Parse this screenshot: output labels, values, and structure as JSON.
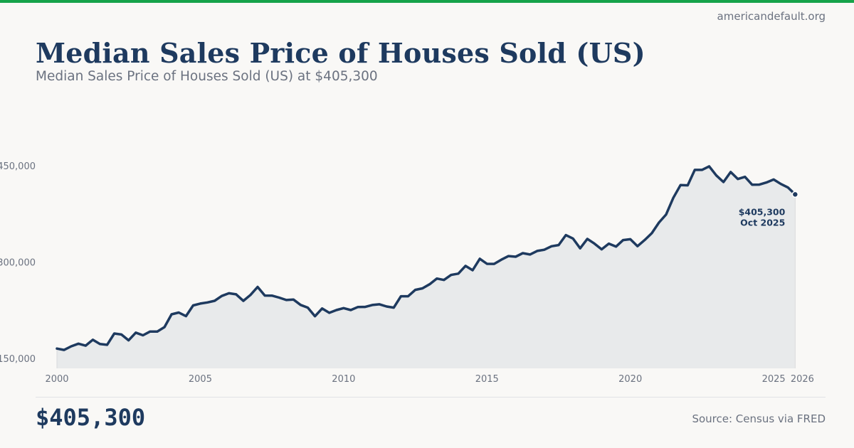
{
  "header": {
    "site": "americandefault.org",
    "title": "Median Sales Price of Houses Sold (US)",
    "subtitle": "Median Sales Price of Houses Sold (US) at $405,300"
  },
  "footer": {
    "value": "$405,300",
    "source": "Source: Census via FRED"
  },
  "colors": {
    "accent_bar": "#16a34a",
    "line": "#1e3a5f",
    "area": "#e8eaeb",
    "muted_text": "#6b7280"
  },
  "chart_data": {
    "type": "area",
    "title": "Median Sales Price of Houses Sold (US)",
    "xlabel": "",
    "ylabel": "",
    "frequency": "quarterly",
    "x_start": "2000-01",
    "xlim": [
      2000,
      2026
    ],
    "ylim": [
      134500,
      480000
    ],
    "grid": false,
    "legend": "none",
    "y_ticks": [
      {
        "value": 150000,
        "label": "$150,000"
      },
      {
        "value": 300000,
        "label": "$300,000"
      },
      {
        "value": 450000,
        "label": "$450,000"
      }
    ],
    "x_ticks": [
      {
        "value": 2000,
        "label": "2000"
      },
      {
        "value": 2005,
        "label": "2005"
      },
      {
        "value": 2010,
        "label": "2010"
      },
      {
        "value": 2015,
        "label": "2015"
      },
      {
        "value": 2020,
        "label": "2020"
      },
      {
        "value": 2025,
        "label": "2025"
      },
      {
        "value": 2026,
        "label": "2026"
      }
    ],
    "values": [
      165300,
      163200,
      168800,
      172900,
      169800,
      179000,
      172500,
      171100,
      188700,
      187200,
      178100,
      190100,
      186000,
      191800,
      191900,
      198700,
      218600,
      221400,
      215800,
      232500,
      235300,
      237100,
      239700,
      247200,
      251400,
      249700,
      239600,
      248800,
      261300,
      247900,
      247800,
      244700,
      240900,
      241700,
      233300,
      229000,
      215700,
      227700,
      221000,
      225300,
      228300,
      225300,
      230000,
      230200,
      233100,
      234200,
      230800,
      229000,
      246700,
      246800,
      256700,
      259000,
      265500,
      274300,
      272100,
      280000,
      282000,
      294000,
      287300,
      305100,
      297200,
      297100,
      303600,
      309300,
      308300,
      313800,
      311700,
      317300,
      319100,
      324600,
      326500,
      342000,
      336600,
      321400,
      336100,
      328700,
      319800,
      328700,
      324000,
      334200,
      335500,
      324700,
      334200,
      344900,
      361600,
      374100,
      400000,
      419800,
      419500,
      443500,
      443500,
      449000,
      434800,
      424500,
      440200,
      429300,
      432600,
      420300,
      420500,
      423900,
      428500,
      421600,
      416000,
      405300
    ],
    "annotation": {
      "value_label": "$405,300",
      "date_label": "Oct 2025"
    }
  }
}
